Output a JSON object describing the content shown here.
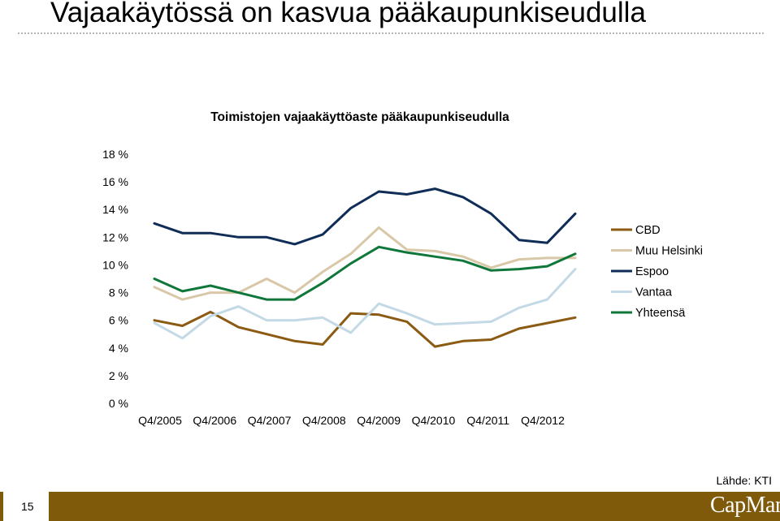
{
  "slide": {
    "title": "Vajaakäytössä on kasvua pääkaupunkiseudulla",
    "source": "Lähde: KTI",
    "page_number": "15",
    "logo_text": "CapMan",
    "footer_color": "#7f5a0b"
  },
  "chart_data": {
    "type": "line",
    "title": "Toimistojen vajaakäyttöaste pääkaupunkiseudulla",
    "xlabel": "",
    "ylabel": "",
    "ylim": [
      0,
      18
    ],
    "y_ticks": [
      "0 %",
      "2 %",
      "4 %",
      "6 %",
      "8 %",
      "10 %",
      "12 %",
      "14 %",
      "16 %",
      "18 %"
    ],
    "x_tick_labels": [
      "Q4/2005",
      "Q4/2006",
      "Q4/2007",
      "Q4/2008",
      "Q4/2009",
      "Q4/2010",
      "Q4/2011",
      "Q4/2012"
    ],
    "grid": false,
    "legend_position": "right",
    "series": [
      {
        "name": "CBD",
        "color": "#8b5a13",
        "values": [
          6.0,
          5.6,
          6.6,
          5.5,
          5.0,
          4.5,
          4.25,
          6.5,
          6.4,
          5.9,
          4.1,
          4.5,
          4.6,
          5.4,
          5.8,
          6.2
        ]
      },
      {
        "name": "Muu Helsinki",
        "color": "#d9c8a8",
        "values": [
          8.4,
          7.5,
          8.0,
          8.0,
          9.0,
          8.0,
          9.5,
          10.8,
          12.7,
          11.1,
          11.0,
          10.6,
          9.8,
          10.4,
          10.5,
          10.5
        ]
      },
      {
        "name": "Espoo",
        "color": "#0f2d57",
        "values": [
          13.0,
          12.3,
          12.3,
          12.0,
          12.0,
          11.5,
          12.2,
          14.1,
          15.3,
          15.1,
          15.5,
          14.9,
          13.7,
          11.8,
          11.6,
          13.7
        ]
      },
      {
        "name": "Vantaa",
        "color": "#c4d9e6",
        "values": [
          5.8,
          4.7,
          6.3,
          7.0,
          6.0,
          6.0,
          6.2,
          5.1,
          7.2,
          6.5,
          5.7,
          5.8,
          5.9,
          6.9,
          7.5,
          9.7
        ]
      },
      {
        "name": "Yhteensä",
        "color": "#10773a",
        "values": [
          9.0,
          8.1,
          8.5,
          8.0,
          7.5,
          7.5,
          8.7,
          10.1,
          11.3,
          10.9,
          10.6,
          10.3,
          9.6,
          9.7,
          9.9,
          10.8
        ]
      }
    ]
  }
}
